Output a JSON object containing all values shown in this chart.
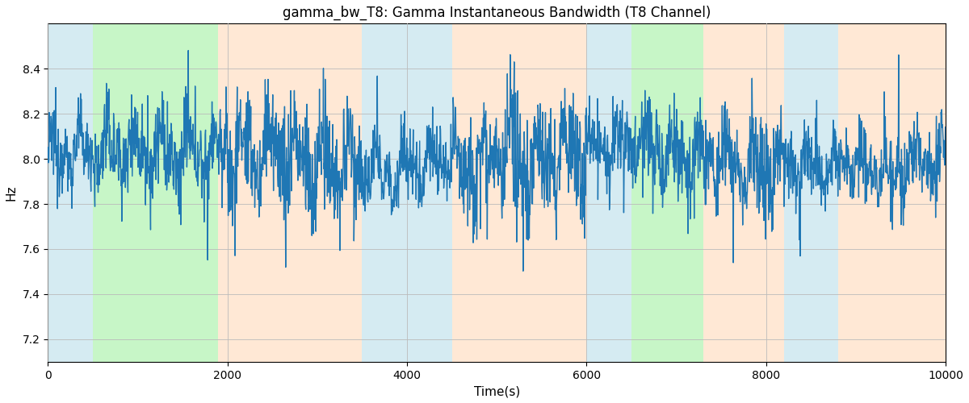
{
  "title": "gamma_bw_T8: Gamma Instantaneous Bandwidth (T8 Channel)",
  "xlabel": "Time(s)",
  "ylabel": "Hz",
  "xlim": [
    0,
    10000
  ],
  "ylim": [
    7.1,
    8.6
  ],
  "line_color": "#1f77b4",
  "line_width": 1.0,
  "background_color": "#ffffff",
  "grid_color": "#bbbbbb",
  "seed": 12345,
  "n_points": 2500,
  "mean": 8.0,
  "bands": [
    {
      "xmin": 0,
      "xmax": 500,
      "color": "#add8e6",
      "alpha": 0.5
    },
    {
      "xmin": 500,
      "xmax": 1900,
      "color": "#90ee90",
      "alpha": 0.5
    },
    {
      "xmin": 1900,
      "xmax": 3500,
      "color": "#ffdab9",
      "alpha": 0.6
    },
    {
      "xmin": 3500,
      "xmax": 4500,
      "color": "#add8e6",
      "alpha": 0.5
    },
    {
      "xmin": 4500,
      "xmax": 6000,
      "color": "#ffdab9",
      "alpha": 0.6
    },
    {
      "xmin": 6000,
      "xmax": 6500,
      "color": "#add8e6",
      "alpha": 0.5
    },
    {
      "xmin": 6500,
      "xmax": 7300,
      "color": "#90ee90",
      "alpha": 0.5
    },
    {
      "xmin": 7300,
      "xmax": 8200,
      "color": "#ffdab9",
      "alpha": 0.6
    },
    {
      "xmin": 8200,
      "xmax": 8800,
      "color": "#add8e6",
      "alpha": 0.5
    },
    {
      "xmin": 8800,
      "xmax": 10000,
      "color": "#ffdab9",
      "alpha": 0.6
    }
  ],
  "yticks": [
    7.2,
    7.4,
    7.6,
    7.8,
    8.0,
    8.2,
    8.4
  ],
  "xticks": [
    0,
    2000,
    4000,
    6000,
    8000,
    10000
  ],
  "figsize": [
    12.0,
    5.0
  ],
  "dpi": 100
}
